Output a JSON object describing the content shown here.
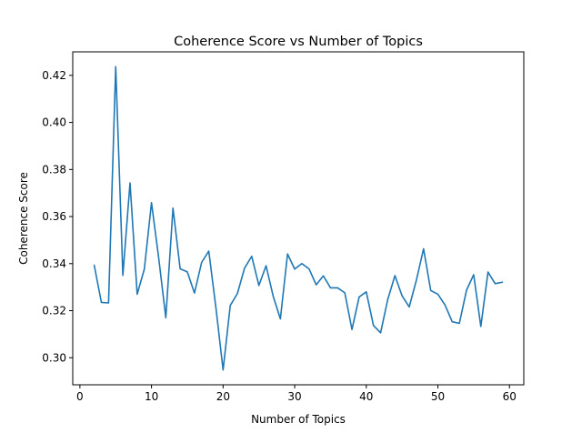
{
  "chart_data": {
    "type": "line",
    "title": "Coherence Score vs Number of Topics",
    "xlabel": "Number of Topics",
    "ylabel": "Coherence Score",
    "xlim": [
      -1,
      62
    ],
    "ylim": [
      0.2885,
      0.43
    ],
    "x_ticks": [
      0,
      10,
      20,
      30,
      40,
      50,
      60
    ],
    "y_ticks": [
      0.3,
      0.32,
      0.34,
      0.36,
      0.38,
      0.4,
      0.42
    ],
    "x_tick_labels": [
      "0",
      "10",
      "20",
      "30",
      "40",
      "50",
      "60"
    ],
    "y_tick_labels": [
      "0.30",
      "0.32",
      "0.34",
      "0.36",
      "0.38",
      "0.40",
      "0.42"
    ],
    "grid": false,
    "series": [
      {
        "color": "#1f77b4",
        "x": [
          2,
          3,
          4,
          5,
          6,
          7,
          8,
          9,
          10,
          11,
          12,
          13,
          14,
          15,
          16,
          17,
          18,
          19,
          20,
          21,
          22,
          23,
          24,
          25,
          26,
          27,
          28,
          29,
          30,
          31,
          32,
          33,
          34,
          35,
          36,
          37,
          38,
          39,
          40,
          41,
          42,
          43,
          44,
          45,
          46,
          47,
          48,
          49,
          50,
          51,
          52,
          53,
          54,
          55,
          56,
          57,
          58,
          59
        ],
        "y": [
          0.3393,
          0.3235,
          0.3233,
          0.4237,
          0.335,
          0.3743,
          0.327,
          0.3377,
          0.3659,
          0.3425,
          0.317,
          0.3636,
          0.3378,
          0.3365,
          0.3275,
          0.3405,
          0.3453,
          0.3212,
          0.2948,
          0.3222,
          0.3273,
          0.3381,
          0.3431,
          0.3307,
          0.3391,
          0.3261,
          0.3165,
          0.3441,
          0.3377,
          0.34,
          0.3378,
          0.331,
          0.3348,
          0.3297,
          0.3297,
          0.3276,
          0.312,
          0.3258,
          0.328,
          0.3137,
          0.3106,
          0.3248,
          0.3349,
          0.3263,
          0.3216,
          0.333,
          0.3463,
          0.3286,
          0.327,
          0.3224,
          0.3153,
          0.3146,
          0.3287,
          0.3353,
          0.3133,
          0.3364,
          0.3315,
          0.3321
        ]
      }
    ]
  }
}
